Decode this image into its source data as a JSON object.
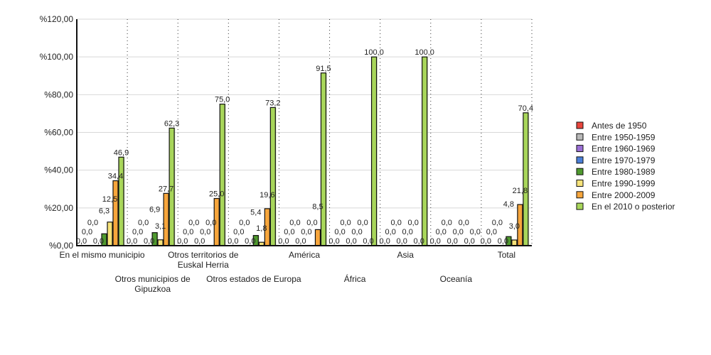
{
  "chart_data": {
    "type": "bar",
    "title": "",
    "xlabel": "",
    "ylabel": "",
    "ylim": [
      0,
      120
    ],
    "yticks": [
      "%0,00",
      "%20,00",
      "%40,00",
      "%60,00",
      "%80,00",
      "%100,00",
      "%120,00"
    ],
    "ytick_values": [
      0,
      20,
      40,
      60,
      80,
      100,
      120
    ],
    "grid": true,
    "legend_position": "right",
    "categories": [
      "En el mismo municipio",
      "Otros municipios de Gipuzkoa",
      "Otros territorios de Euskal Herria",
      "Otros estados de Europa",
      "América",
      "África",
      "Asia",
      "Oceanía",
      "Total"
    ],
    "series": [
      {
        "name": "Antes de 1950",
        "color": "#e8453c",
        "values": [
          0,
          0,
          0,
          0,
          0,
          0,
          0,
          0,
          0
        ]
      },
      {
        "name": "Entre 1950-1959",
        "color": "#b8b8b8",
        "values": [
          0,
          0,
          0,
          0,
          0,
          0,
          0,
          0,
          0
        ]
      },
      {
        "name": "Entre 1960-1969",
        "color": "#9b6fd6",
        "values": [
          0,
          0,
          0,
          0,
          0,
          0,
          0,
          0,
          0
        ]
      },
      {
        "name": "Entre 1970-1979",
        "color": "#4a7fd8",
        "values": [
          0,
          0,
          0,
          0,
          0,
          0,
          0,
          0,
          0
        ]
      },
      {
        "name": "Entre 1980-1989",
        "color": "#4f9a2e",
        "values": [
          6.3,
          6.9,
          0,
          5.4,
          0,
          0,
          0,
          0,
          4.8
        ]
      },
      {
        "name": "Entre 1990-1999",
        "color": "#f7e37a",
        "values": [
          12.5,
          3.1,
          0,
          1.8,
          0,
          0,
          0,
          0,
          3.0
        ]
      },
      {
        "name": "Entre 2000-2009",
        "color": "#f7a63c",
        "values": [
          34.4,
          27.7,
          25.0,
          19.6,
          8.5,
          0,
          0,
          0,
          21.8
        ]
      },
      {
        "name": "En el 2010 o posterior",
        "color": "#a8d65a",
        "values": [
          46.9,
          62.3,
          75.0,
          73.2,
          91.5,
          100.0,
          100.0,
          0,
          70.4
        ]
      }
    ]
  }
}
